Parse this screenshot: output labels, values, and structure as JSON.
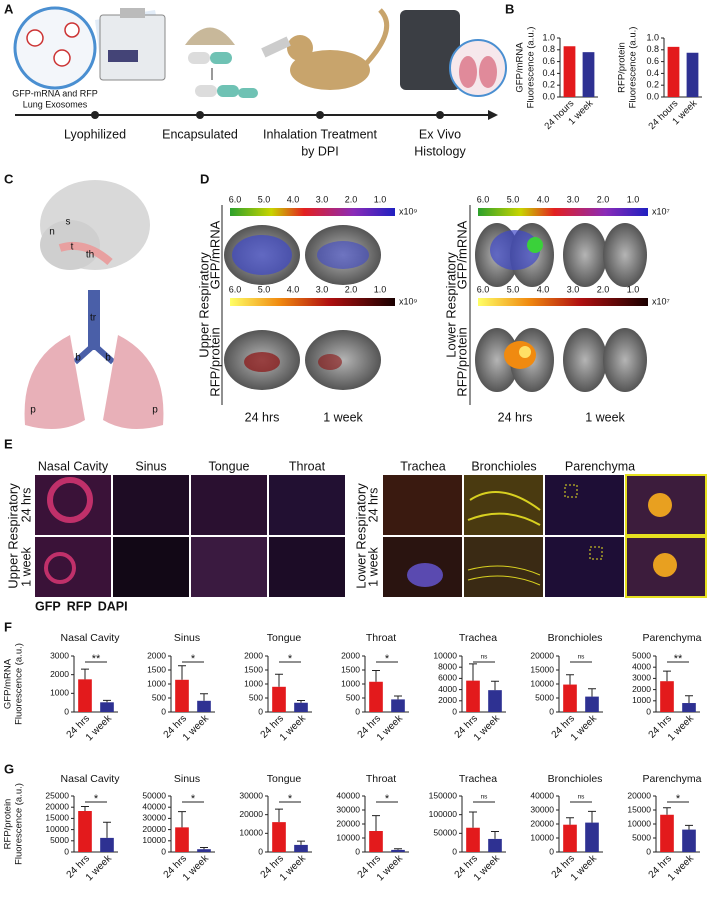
{
  "panel_labels": [
    "A",
    "B",
    "C",
    "D",
    "E",
    "F",
    "G"
  ],
  "panel_a": {
    "caption": [
      "GFP-mRNA and RFP",
      "Lung Exosomes"
    ],
    "steps": [
      [
        "Lyophilized"
      ],
      [
        "Encapsulated"
      ],
      [
        "Inhalation Treatment",
        "by DPI"
      ],
      [
        "Ex Vivo",
        "Histology"
      ]
    ]
  },
  "panel_c": {
    "labels": [
      "s",
      "n",
      "t",
      "th",
      "tr",
      "b",
      "b",
      "p",
      "p"
    ]
  },
  "panel_d": {
    "regions": [
      "Upper Respiratory",
      "Lower Respiratory"
    ],
    "rows": [
      "GFP/mRNA",
      "RFP/protein"
    ],
    "times": [
      "24 hrs",
      "1 week"
    ],
    "colorbar_ticks": [
      "6.0",
      "5.0",
      "4.0",
      "3.0",
      "2.0",
      "1.0"
    ],
    "multipliers": [
      "x10⁹",
      "x10⁷"
    ]
  },
  "panel_e": {
    "upper_tissues": [
      "Nasal Cavity",
      "Sinus",
      "Tongue",
      "Throat"
    ],
    "lower_tissues": [
      "Trachea",
      "Bronchioles",
      "Parenchyma"
    ],
    "regions": [
      "Upper Respiratory",
      "Lower Respiratory"
    ],
    "times": [
      "24 hrs",
      "1 week"
    ],
    "legend": [
      {
        "text": "GFP",
        "color": "#2ca02c"
      },
      {
        "text": "RFP",
        "color": "#d62728"
      },
      {
        "text": "DAPI",
        "color": "#3a2fa0"
      }
    ]
  },
  "chart_data": [
    {
      "type": "bar",
      "ylabel": [
        "GFP/mRNA",
        "Fluorescence (a.u.)"
      ],
      "categories": [
        "24 hours",
        "1 week"
      ],
      "values": [
        0.86,
        0.76
      ],
      "colors": [
        "#e31a1c",
        "#2e3192"
      ],
      "ylim": [
        0,
        1.0
      ],
      "yticks": [
        {
          "value": 0,
          "label": "0.0"
        },
        0.2,
        0.4,
        0.6,
        0.8,
        {
          "value": 1.0,
          "label": "1.0"
        }
      ]
    },
    {
      "type": "bar",
      "ylabel": [
        "RFP/protein",
        "Fluorescence (a.u.)"
      ],
      "categories": [
        "24 hours",
        "1 week"
      ],
      "values": [
        0.85,
        0.75
      ],
      "colors": [
        "#e31a1c",
        "#2e3192"
      ],
      "ylim": [
        0,
        1.0
      ],
      "yticks": [
        {
          "value": 0,
          "label": "0.0"
        },
        0.2,
        0.4,
        0.6,
        0.8,
        {
          "value": 1.0,
          "label": "1.0"
        }
      ]
    },
    {
      "type": "bar",
      "title": "Nasal Cavity",
      "ylabel": [
        "GFP/mRNA",
        "Fluorescence (a.u.)"
      ],
      "categories": [
        "24 hrs",
        "1 week"
      ],
      "values": [
        1750,
        520
      ],
      "errors": [
        550,
        100
      ],
      "significance": "**",
      "colors": [
        "#e31a1c",
        "#2e3192"
      ],
      "ylim": [
        0,
        3000
      ],
      "yticks": [
        0,
        1000,
        2000,
        3000
      ]
    },
    {
      "type": "bar",
      "title": "Sinus",
      "categories": [
        "24 hrs",
        "1 week"
      ],
      "values": [
        1150,
        400
      ],
      "errors": [
        500,
        250
      ],
      "significance": "*",
      "colors": [
        "#e31a1c",
        "#2e3192"
      ],
      "ylim": [
        0,
        2000
      ],
      "yticks": [
        0,
        500,
        1000,
        1500,
        2000
      ]
    },
    {
      "type": "bar",
      "title": "Tongue",
      "categories": [
        "24 hrs",
        "1 week"
      ],
      "values": [
        900,
        330
      ],
      "errors": [
        450,
        80
      ],
      "significance": "*",
      "colors": [
        "#e31a1c",
        "#2e3192"
      ],
      "ylim": [
        0,
        2000
      ],
      "yticks": [
        0,
        500,
        1000,
        1500,
        2000
      ]
    },
    {
      "type": "bar",
      "title": "Throat",
      "categories": [
        "24 hrs",
        "1 week"
      ],
      "values": [
        1080,
        450
      ],
      "errors": [
        400,
        120
      ],
      "significance": "*",
      "colors": [
        "#e31a1c",
        "#2e3192"
      ],
      "ylim": [
        0,
        2000
      ],
      "yticks": [
        0,
        500,
        1000,
        1500,
        2000
      ]
    },
    {
      "type": "bar",
      "title": "Trachea",
      "categories": [
        "24 hrs",
        "1 week"
      ],
      "values": [
        5600,
        3900
      ],
      "errors": [
        3000,
        1600
      ],
      "significance": "ns",
      "colors": [
        "#e31a1c",
        "#2e3192"
      ],
      "ylim": [
        0,
        10000
      ],
      "yticks": [
        0,
        2000,
        4000,
        6000,
        8000,
        10000
      ]
    },
    {
      "type": "bar",
      "title": "Bronchioles",
      "categories": [
        "24 hrs",
        "1 week"
      ],
      "values": [
        9800,
        5500
      ],
      "errors": [
        3500,
        2800
      ],
      "significance": "ns",
      "colors": [
        "#e31a1c",
        "#2e3192"
      ],
      "ylim": [
        0,
        20000
      ],
      "yticks": [
        0,
        5000,
        10000,
        15000,
        20000
      ]
    },
    {
      "type": "bar",
      "title": "Parenchyma",
      "categories": [
        "24 hrs",
        "1 week"
      ],
      "values": [
        2750,
        800
      ],
      "errors": [
        900,
        650
      ],
      "significance": "**",
      "colors": [
        "#e31a1c",
        "#2e3192"
      ],
      "ylim": [
        0,
        5000
      ],
      "yticks": [
        0,
        1000,
        2000,
        3000,
        4000,
        5000
      ]
    },
    {
      "type": "bar",
      "title": "Nasal Cavity",
      "ylabel": [
        "RFP/protein",
        "Fluorescence (a.u.)"
      ],
      "categories": [
        "24 hrs",
        "1 week"
      ],
      "values": [
        18300,
        6300
      ],
      "errors": [
        2000,
        7000
      ],
      "significance": "*",
      "colors": [
        "#e31a1c",
        "#2e3192"
      ],
      "ylim": [
        0,
        25000
      ],
      "yticks": [
        0,
        5000,
        10000,
        15000,
        20000,
        25000
      ]
    },
    {
      "type": "bar",
      "title": "Sinus",
      "categories": [
        "24 hrs",
        "1 week"
      ],
      "values": [
        22000,
        2500
      ],
      "errors": [
        14000,
        1500
      ],
      "significance": "*",
      "colors": [
        "#e31a1c",
        "#2e3192"
      ],
      "ylim": [
        0,
        50000
      ],
      "yticks": [
        0,
        10000,
        20000,
        30000,
        40000,
        50000
      ]
    },
    {
      "type": "bar",
      "title": "Tongue",
      "categories": [
        "24 hrs",
        "1 week"
      ],
      "values": [
        16000,
        3800
      ],
      "errors": [
        7000,
        2000
      ],
      "significance": "*",
      "colors": [
        "#e31a1c",
        "#2e3192"
      ],
      "ylim": [
        0,
        30000
      ],
      "yticks": [
        0,
        10000,
        20000,
        30000
      ]
    },
    {
      "type": "bar",
      "title": "Throat",
      "categories": [
        "24 hrs",
        "1 week"
      ],
      "values": [
        15000,
        1500
      ],
      "errors": [
        11000,
        800
      ],
      "significance": "*",
      "colors": [
        "#e31a1c",
        "#2e3192"
      ],
      "ylim": [
        0,
        40000
      ],
      "yticks": [
        0,
        10000,
        20000,
        30000,
        40000
      ]
    },
    {
      "type": "bar",
      "title": "Trachea",
      "categories": [
        "24 hrs",
        "1 week"
      ],
      "values": [
        65000,
        35000
      ],
      "errors": [
        42000,
        20000
      ],
      "significance": "ns",
      "colors": [
        "#e31a1c",
        "#2e3192"
      ],
      "ylim": [
        0,
        150000
      ],
      "yticks": [
        0,
        50000,
        100000,
        150000
      ]
    },
    {
      "type": "bar",
      "title": "Bronchioles",
      "categories": [
        "24 hrs",
        "1 week"
      ],
      "values": [
        19500,
        21000
      ],
      "errors": [
        5000,
        8000
      ],
      "significance": "ns",
      "colors": [
        "#e31a1c",
        "#2e3192"
      ],
      "ylim": [
        0,
        40000
      ],
      "yticks": [
        0,
        10000,
        20000,
        30000,
        40000
      ]
    },
    {
      "type": "bar",
      "title": "Parenchyma",
      "categories": [
        "24 hrs",
        "1 week"
      ],
      "values": [
        13300,
        8000
      ],
      "errors": [
        2500,
        1500
      ],
      "significance": "*",
      "colors": [
        "#e31a1c",
        "#2e3192"
      ],
      "ylim": [
        0,
        20000
      ],
      "yticks": [
        0,
        5000,
        10000,
        15000,
        20000
      ]
    }
  ]
}
